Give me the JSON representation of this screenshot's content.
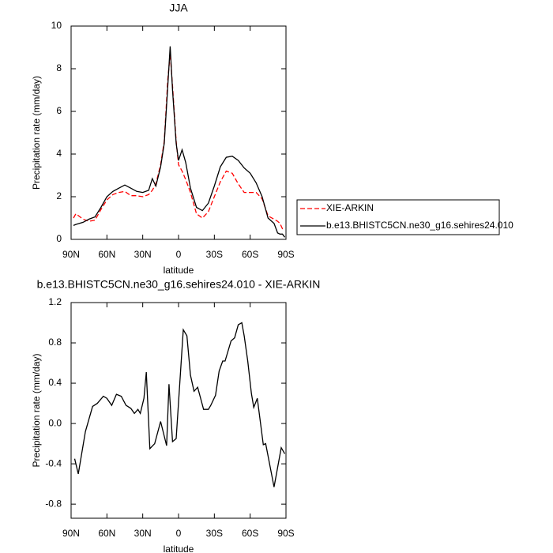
{
  "chart_data": [
    {
      "type": "line",
      "title": "JJA",
      "xlabel": "latitude",
      "ylabel": "Precipitation rate (mm/day)",
      "x": [
        88,
        86,
        80,
        75,
        70,
        65,
        60,
        55,
        50,
        45,
        40,
        35,
        30,
        25,
        22,
        19,
        15,
        12,
        9,
        7,
        5,
        2,
        0,
        -3,
        -6,
        -10,
        -15,
        -20,
        -25,
        -30,
        -35,
        -40,
        -45,
        -50,
        -55,
        -60,
        -65,
        -70,
        -75,
        -80,
        -83,
        -85,
        -87,
        -89
      ],
      "series": [
        {
          "name": "XIE-ARKIN",
          "color": "#ff0000",
          "style": "dashed",
          "values": [
            1.0,
            1.2,
            0.95,
            0.85,
            0.9,
            1.4,
            1.85,
            2.1,
            2.2,
            2.25,
            2.05,
            2.05,
            2.0,
            2.1,
            2.3,
            2.6,
            3.5,
            4.6,
            7.5,
            8.7,
            7.2,
            4.6,
            3.5,
            3.2,
            2.8,
            2.2,
            1.2,
            1.0,
            1.3,
            2.0,
            2.7,
            3.2,
            3.1,
            2.6,
            2.2,
            2.2,
            2.2,
            1.9,
            1.1,
            0.95,
            0.85,
            0.75,
            0.5,
            0.5
          ]
        },
        {
          "name": "b.e13.BHISTC5CN.ne30_g16.sehires24.010",
          "color": "#000000",
          "style": "solid",
          "values": [
            0.65,
            0.7,
            0.8,
            0.95,
            1.05,
            1.5,
            2.0,
            2.25,
            2.4,
            2.55,
            2.4,
            2.25,
            2.2,
            2.3,
            2.85,
            2.5,
            3.4,
            4.5,
            7.2,
            9.05,
            7.0,
            4.5,
            3.7,
            4.2,
            3.6,
            2.4,
            1.5,
            1.35,
            1.7,
            2.5,
            3.4,
            3.85,
            3.9,
            3.7,
            3.35,
            3.1,
            2.65,
            2.0,
            1.0,
            0.75,
            0.3,
            0.25,
            0.25,
            0.1
          ]
        }
      ],
      "xlim": [
        90,
        -90
      ],
      "xticks": [
        {
          "value": 90,
          "label": "90N"
        },
        {
          "value": 60,
          "label": "60N"
        },
        {
          "value": 30,
          "label": "30N"
        },
        0,
        {
          "value": -30,
          "label": "30S"
        },
        {
          "value": -60,
          "label": "60S"
        },
        {
          "value": -90,
          "label": "90S"
        }
      ],
      "ylim": [
        0,
        10
      ],
      "yticks": [
        0,
        2,
        4,
        6,
        8,
        10
      ],
      "legend": "right"
    },
    {
      "type": "line",
      "title": "b.e13.BHISTC5CN.ne30_g16.sehires24.010 - XIE-ARKIN",
      "xlabel": "latitude",
      "ylabel": "Precipitation rate (mm/day)",
      "x": [
        87,
        84,
        78,
        72,
        68,
        63,
        60,
        56,
        52,
        48,
        44,
        40,
        37,
        34,
        32,
        29,
        27,
        24,
        20,
        15,
        10,
        8,
        5,
        2,
        -4,
        -7,
        -10,
        -13,
        -16,
        -21,
        -25,
        -27,
        -31,
        -34,
        -37,
        -39,
        -44,
        -47,
        -50,
        -53,
        -55,
        -58,
        -61,
        -63,
        -66,
        -71,
        -73,
        -80,
        -86,
        -89
      ],
      "values": [
        -0.35,
        -0.5,
        -0.08,
        0.17,
        0.2,
        0.27,
        0.25,
        0.18,
        0.29,
        0.27,
        0.18,
        0.15,
        0.1,
        0.14,
        0.1,
        0.25,
        0.51,
        -0.25,
        -0.2,
        0.02,
        -0.22,
        0.39,
        -0.18,
        -0.15,
        0.93,
        0.87,
        0.48,
        0.32,
        0.36,
        0.14,
        0.14,
        0.18,
        0.28,
        0.52,
        0.62,
        0.62,
        0.82,
        0.85,
        0.98,
        1.0,
        0.87,
        0.62,
        0.3,
        0.16,
        0.25,
        -0.21,
        -0.2,
        -0.63,
        -0.24,
        -0.3
      ],
      "color": "#000000",
      "xlim": [
        90,
        -90
      ],
      "xticks": [
        {
          "value": 90,
          "label": "90N"
        },
        {
          "value": 60,
          "label": "60N"
        },
        {
          "value": 30,
          "label": "30N"
        },
        0,
        {
          "value": -30,
          "label": "30S"
        },
        {
          "value": -60,
          "label": "60S"
        },
        {
          "value": -90,
          "label": "90S"
        }
      ],
      "ylim": [
        -0.94,
        1.2
      ],
      "yticks": [
        {
          "value": -0.8,
          "label": "-0.8"
        },
        -0.4,
        {
          "value": 0,
          "label": "0.0"
        },
        0.4,
        0.8,
        1.2
      ]
    }
  ]
}
